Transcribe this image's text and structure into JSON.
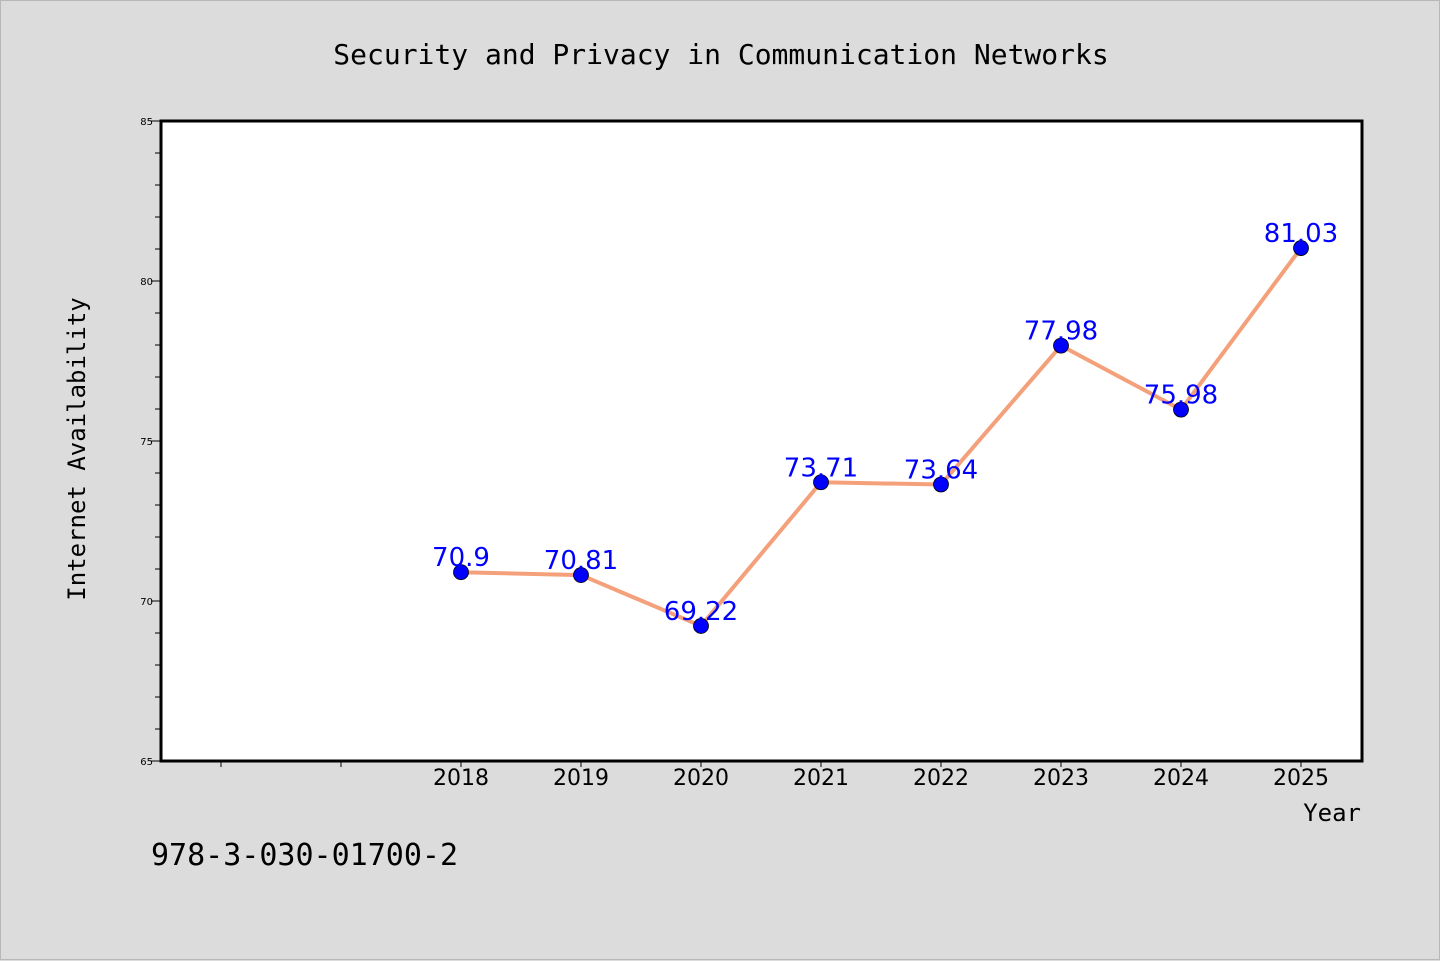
{
  "chart_data": {
    "type": "line",
    "title": "Security and Privacy in Communication Networks",
    "xlabel": "Year",
    "ylabel": "Internet Availability",
    "categories": [
      "2018",
      "2019",
      "2020",
      "2021",
      "2022",
      "2023",
      "2024",
      "2025"
    ],
    "series": [
      {
        "values": [
          70.9,
          70.81,
          69.22,
          73.71,
          73.64,
          77.98,
          75.98,
          81.03
        ]
      }
    ],
    "data_labels": [
      "70.9",
      "70.81",
      "69.22",
      "73.71",
      "73.64",
      "77.98",
      "75.98",
      "81.03"
    ],
    "ylim": [
      65,
      85
    ],
    "yticks": [
      65,
      70,
      75,
      80,
      85
    ],
    "grid": false,
    "line_color": "#f4a07a",
    "marker_color": "#0000ff",
    "label_color": "#0000ff"
  },
  "footer_text": "978-3-030-01700-2"
}
